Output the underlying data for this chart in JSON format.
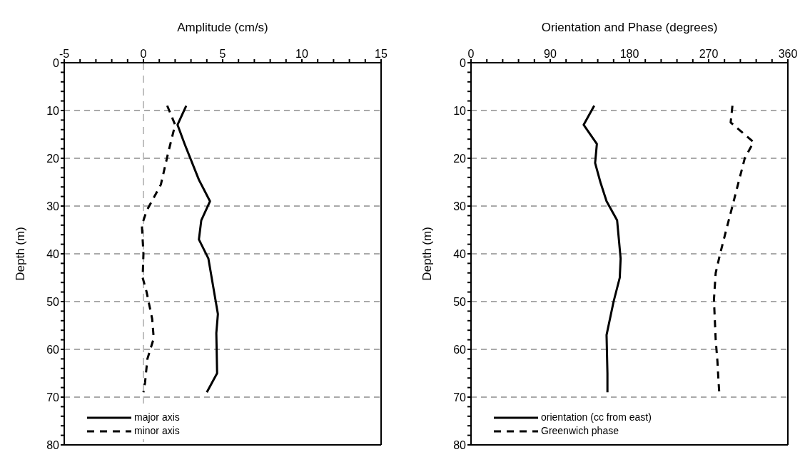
{
  "chart_data": [
    {
      "type": "line",
      "orientation": "horizontal",
      "xlabel": "Amplitude (cm/s)",
      "ylabel": "Depth (m)",
      "xlim": [
        -5,
        15
      ],
      "xticks": [
        -5,
        {
          "value": -4,
          "label": null
        },
        {
          "value": -3,
          "label": null
        },
        {
          "value": -2,
          "label": null
        },
        {
          "value": -1,
          "label": null
        },
        0,
        {
          "value": 1,
          "label": null
        },
        {
          "value": 2,
          "label": null
        },
        {
          "value": 3,
          "label": null
        },
        {
          "value": 4,
          "label": null
        },
        5,
        {
          "value": 6,
          "label": null
        },
        {
          "value": 7,
          "label": null
        },
        {
          "value": 8,
          "label": null
        },
        {
          "value": 9,
          "label": null
        },
        10,
        {
          "value": 11,
          "label": null
        },
        {
          "value": 12,
          "label": null
        },
        {
          "value": 13,
          "label": null
        },
        {
          "value": 14,
          "label": null
        },
        15
      ],
      "ylim": [
        80,
        0
      ],
      "yticks": [
        0,
        {
          "value": 2,
          "label": null
        },
        {
          "value": 4,
          "label": null
        },
        {
          "value": 6,
          "label": null
        },
        {
          "value": 8,
          "label": null
        },
        10,
        {
          "value": 12,
          "label": null
        },
        {
          "value": 14,
          "label": null
        },
        {
          "value": 16,
          "label": null
        },
        {
          "value": 18,
          "label": null
        },
        20,
        {
          "value": 22,
          "label": null
        },
        {
          "value": 24,
          "label": null
        },
        {
          "value": 26,
          "label": null
        },
        {
          "value": 28,
          "label": null
        },
        30,
        {
          "value": 32,
          "label": null
        },
        {
          "value": 34,
          "label": null
        },
        {
          "value": 36,
          "label": null
        },
        {
          "value": 38,
          "label": null
        },
        40,
        {
          "value": 42,
          "label": null
        },
        {
          "value": 44,
          "label": null
        },
        {
          "value": 46,
          "label": null
        },
        {
          "value": 48,
          "label": null
        },
        50,
        {
          "value": 52,
          "label": null
        },
        {
          "value": 54,
          "label": null
        },
        {
          "value": 56,
          "label": null
        },
        {
          "value": 58,
          "label": null
        },
        60,
        {
          "value": 62,
          "label": null
        },
        {
          "value": 64,
          "label": null
        },
        {
          "value": 66,
          "label": null
        },
        {
          "value": 68,
          "label": null
        },
        70,
        {
          "value": 72,
          "label": null
        },
        {
          "value": 74,
          "label": null
        },
        {
          "value": 76,
          "label": null
        },
        {
          "value": 78,
          "label": null
        },
        80
      ],
      "grid": "y",
      "legend": "bottom left",
      "ref_lines": [
        {
          "axis": "x",
          "value": 0,
          "color": "#808080",
          "line_style": "dashed"
        }
      ],
      "series": [
        {
          "name": "major axis",
          "color": "#000000",
          "line_style": "solid",
          "x": [
            9,
            13,
            17,
            24.5,
            29,
            33,
            37,
            41,
            52.6,
            56.6,
            65,
            69
          ],
          "values": [
            2.7,
            2.15,
            2.6,
            3.5,
            4.2,
            3.65,
            3.5,
            4.1,
            4.7,
            4.6,
            4.65,
            4.0
          ]
        },
        {
          "name": "minor axis",
          "color": "#000000",
          "line_style": "dashed",
          "x": [
            9,
            13,
            19,
            25.5,
            31,
            34,
            40,
            45,
            48,
            53.6,
            57.7,
            62,
            67,
            69
          ],
          "values": [
            1.5,
            2.0,
            1.55,
            1.1,
            0.2,
            -0.1,
            0,
            -0.05,
            0.2,
            0.55,
            0.65,
            0.25,
            0.1,
            0
          ]
        }
      ]
    },
    {
      "type": "line",
      "orientation": "horizontal",
      "xlabel": "Orientation and Phase (degrees)",
      "ylabel": "Depth (m)",
      "xlim": [
        0,
        360
      ],
      "xticks": [
        0,
        {
          "value": 18,
          "label": null
        },
        {
          "value": 36,
          "label": null
        },
        {
          "value": 54,
          "label": null
        },
        {
          "value": 72,
          "label": null
        },
        90,
        {
          "value": 108,
          "label": null
        },
        {
          "value": 126,
          "label": null
        },
        {
          "value": 144,
          "label": null
        },
        {
          "value": 162,
          "label": null
        },
        180,
        {
          "value": 198,
          "label": null
        },
        {
          "value": 216,
          "label": null
        },
        {
          "value": 234,
          "label": null
        },
        {
          "value": 252,
          "label": null
        },
        270,
        {
          "value": 288,
          "label": null
        },
        {
          "value": 306,
          "label": null
        },
        {
          "value": 324,
          "label": null
        },
        {
          "value": 342,
          "label": null
        },
        360
      ],
      "ylim": [
        80,
        0
      ],
      "yticks": [
        0,
        {
          "value": 2,
          "label": null
        },
        {
          "value": 4,
          "label": null
        },
        {
          "value": 6,
          "label": null
        },
        {
          "value": 8,
          "label": null
        },
        10,
        {
          "value": 12,
          "label": null
        },
        {
          "value": 14,
          "label": null
        },
        {
          "value": 16,
          "label": null
        },
        {
          "value": 18,
          "label": null
        },
        20,
        {
          "value": 22,
          "label": null
        },
        {
          "value": 24,
          "label": null
        },
        {
          "value": 26,
          "label": null
        },
        {
          "value": 28,
          "label": null
        },
        30,
        {
          "value": 32,
          "label": null
        },
        {
          "value": 34,
          "label": null
        },
        {
          "value": 36,
          "label": null
        },
        {
          "value": 38,
          "label": null
        },
        40,
        {
          "value": 42,
          "label": null
        },
        {
          "value": 44,
          "label": null
        },
        {
          "value": 46,
          "label": null
        },
        {
          "value": 48,
          "label": null
        },
        50,
        {
          "value": 52,
          "label": null
        },
        {
          "value": 54,
          "label": null
        },
        {
          "value": 56,
          "label": null
        },
        {
          "value": 58,
          "label": null
        },
        60,
        {
          "value": 62,
          "label": null
        },
        {
          "value": 64,
          "label": null
        },
        {
          "value": 66,
          "label": null
        },
        {
          "value": 68,
          "label": null
        },
        70,
        {
          "value": 72,
          "label": null
        },
        {
          "value": 74,
          "label": null
        },
        {
          "value": 76,
          "label": null
        },
        {
          "value": 78,
          "label": null
        },
        80
      ],
      "grid": "y",
      "legend": "bottom left",
      "series": [
        {
          "name": "orientation (cc from east)",
          "color": "#000000",
          "line_style": "solid",
          "x": [
            9,
            13,
            17,
            21,
            25,
            29,
            33,
            41,
            45,
            50,
            57,
            65,
            69
          ],
          "values": [
            140,
            128,
            143,
            141,
            147,
            154,
            166,
            170,
            169,
            162,
            154,
            155,
            155
          ]
        },
        {
          "name": "Greenwich phase",
          "color": "#000000",
          "line_style": "dashed",
          "x": [
            9,
            12.5,
            16.6,
            20,
            30,
            40,
            44,
            49.6,
            58,
            62.6,
            66,
            69
          ],
          "values": [
            297,
            295,
            321,
            311,
            297,
            283,
            278,
            276,
            278,
            280,
            281,
            282
          ]
        }
      ]
    }
  ]
}
